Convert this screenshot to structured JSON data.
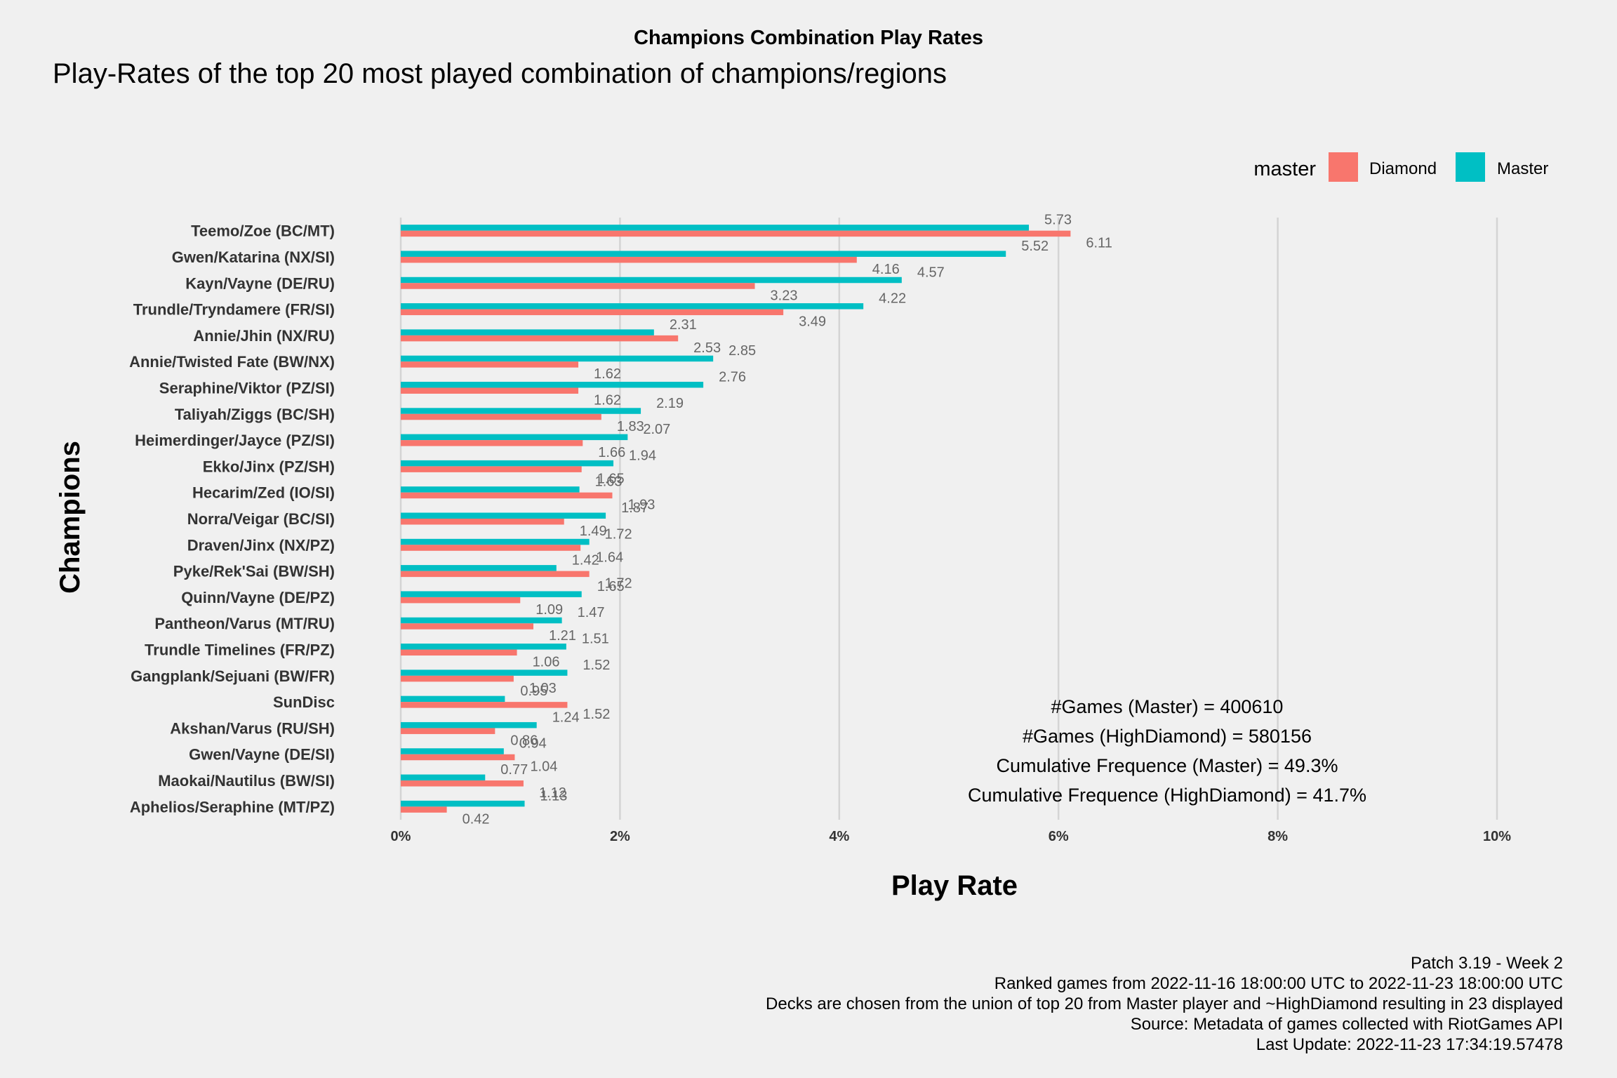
{
  "chart_data": {
    "type": "bar",
    "orientation": "horizontal",
    "title": "Champions Combination Play Rates",
    "subtitle": "Play-Rates of the top 20 most played combination of champions/regions",
    "xlabel": "Play Rate",
    "ylabel": "Champions",
    "xlim": [
      0,
      10
    ],
    "x_ticks": [
      "0%",
      "2%",
      "4%",
      "6%",
      "8%",
      "10%"
    ],
    "grid": "vertical major",
    "legend": {
      "title": "master",
      "placement": "top-right",
      "entries": [
        "Diamond",
        "Master"
      ]
    },
    "categories": [
      "Teemo/Zoe (BC/MT)",
      "Gwen/Katarina (NX/SI)",
      "Kayn/Vayne (DE/RU)",
      "Trundle/Tryndamere (FR/SI)",
      "Annie/Jhin (NX/RU)",
      "Annie/Twisted Fate (BW/NX)",
      "Seraphine/Viktor (PZ/SI)",
      "Taliyah/Ziggs (BC/SH)",
      "Heimerdinger/Jayce (PZ/SI)",
      "Ekko/Jinx (PZ/SH)",
      "Hecarim/Zed (IO/SI)",
      "Norra/Veigar (BC/SI)",
      "Draven/Jinx (NX/PZ)",
      "Pyke/Rek'Sai (BW/SH)",
      "Quinn/Vayne (DE/PZ)",
      "Pantheon/Varus (MT/RU)",
      "Trundle Timelines (FR/PZ)",
      "Gangplank/Sejuani (BW/FR)",
      "SunDisc",
      "Akshan/Varus (RU/SH)",
      "Gwen/Vayne (DE/SI)",
      "Maokai/Nautilus (BW/SI)",
      "Aphelios/Seraphine (MT/PZ)"
    ],
    "series": [
      {
        "name": "Master",
        "color": "#00bfc4",
        "values": [
          5.73,
          5.52,
          4.57,
          4.22,
          2.31,
          2.85,
          2.76,
          2.19,
          2.07,
          1.94,
          1.63,
          1.87,
          1.72,
          1.42,
          1.65,
          1.47,
          1.51,
          1.52,
          0.95,
          1.24,
          0.94,
          0.77,
          1.13
        ]
      },
      {
        "name": "Diamond",
        "color": "#f8766d",
        "values": [
          6.11,
          4.16,
          3.23,
          3.49,
          2.53,
          1.62,
          1.62,
          1.83,
          1.66,
          1.65,
          1.93,
          1.49,
          1.64,
          1.72,
          1.09,
          1.21,
          1.06,
          1.03,
          1.52,
          0.86,
          1.04,
          1.12,
          0.42
        ]
      }
    ],
    "value_labels": {
      "Master": [
        "5.73",
        "5.52",
        "4.57",
        "4.22",
        "2.31",
        "2.85",
        "2.76",
        "2.19",
        "2.07",
        "1.94",
        "1.63",
        "1.87",
        "1.72",
        "1.42",
        "1.65",
        "1.47",
        "1.51",
        "1.52",
        "0.95",
        "1.24",
        "0.94",
        "0.77",
        "1.13"
      ],
      "Diamond": [
        "6.11",
        "4.16",
        "3.23",
        "3.49",
        "2.53",
        "1.62",
        "1.62",
        "1.83",
        "1.66",
        "1.65",
        "1.93",
        "1.49",
        "1.64",
        "1.72",
        "1.09",
        "1.21",
        "1.06",
        "1.03",
        "1.52",
        "0.86",
        "1.04",
        "1.12",
        "0.42"
      ]
    },
    "annotations": [
      "#Games (Master) = 400610",
      "#Games (HighDiamond) = 580156",
      "Cumulative Frequence (Master) = 49.3%",
      "Cumulative Frequence (HighDiamond) = 41.7%"
    ]
  },
  "caption": [
    "Patch 3.19 - Week 2",
    "Ranked games from 2022-11-16 18:00:00 UTC to 2022-11-23 18:00:00 UTC",
    "Decks are chosen from the union of top 20 from Master player and ~HighDiamond resulting in 23 displayed",
    "Source: Metadata of games collected with RiotGames API",
    "Last Update: 2022-11-23 17:34:19.57478"
  ]
}
